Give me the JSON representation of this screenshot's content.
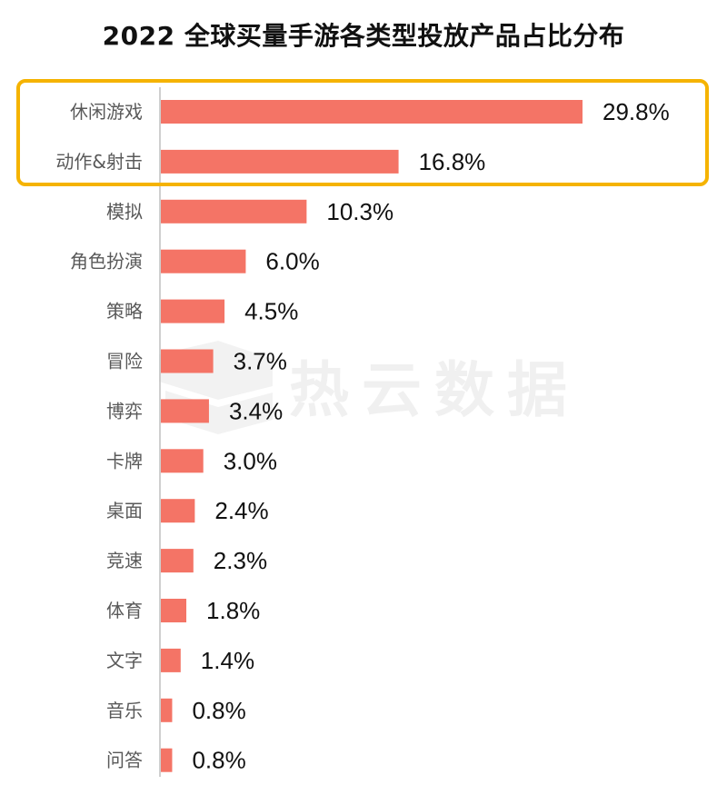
{
  "chart_data": {
    "type": "bar",
    "orientation": "horizontal",
    "title": "2022 全球买量手游各类型投放产品占比分布",
    "categories": [
      "休闲游戏",
      "动作&射击",
      "模拟",
      "角色扮演",
      "策略",
      "冒险",
      "博弈",
      "卡牌",
      "桌面",
      "竞速",
      "体育",
      "文字",
      "音乐",
      "问答"
    ],
    "values": [
      29.8,
      16.8,
      10.3,
      6.0,
      4.5,
      3.7,
      3.4,
      3.0,
      2.4,
      2.3,
      1.8,
      1.4,
      0.8,
      0.8
    ],
    "value_labels": [
      "29.8%",
      "16.8%",
      "10.3%",
      "6.0%",
      "4.5%",
      "3.7%",
      "3.4%",
      "3.0%",
      "2.4%",
      "2.3%",
      "1.8%",
      "1.4%",
      "0.8%",
      "0.8%"
    ],
    "unit": "%",
    "xlim": [
      0,
      30
    ],
    "grid": false,
    "highlight": {
      "categories": [
        "休闲游戏",
        "动作&射击"
      ],
      "color": "#F5B300"
    }
  },
  "colors": {
    "bar": "#F47466",
    "axis": "#BFBFBF",
    "highlight_border": "#F5B300"
  },
  "watermark": {
    "text": "热云数据",
    "logo": "rey-data-logo-icon"
  }
}
